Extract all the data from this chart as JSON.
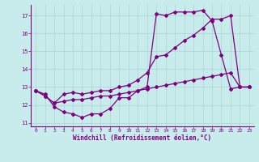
{
  "xlabel": "Windchill (Refroidissement éolien,°C)",
  "bg_color": "#c8ecec",
  "line_color": "#800080",
  "grid_color": "#b0d8d8",
  "xlim": [
    -0.5,
    23.5
  ],
  "ylim": [
    10.8,
    17.6
  ],
  "yticks": [
    11,
    12,
    13,
    14,
    15,
    16,
    17
  ],
  "xticks": [
    0,
    1,
    2,
    3,
    4,
    5,
    6,
    7,
    8,
    9,
    10,
    11,
    12,
    13,
    14,
    15,
    16,
    17,
    18,
    19,
    20,
    21,
    22,
    23
  ],
  "line_a_x": [
    0,
    1,
    2,
    3,
    4,
    5,
    6,
    7,
    8,
    9,
    10,
    11,
    12,
    13,
    14,
    15,
    16,
    17,
    18,
    19,
    20,
    21,
    22,
    23
  ],
  "line_a_y": [
    12.8,
    12.6,
    11.9,
    11.6,
    11.5,
    11.3,
    11.5,
    11.5,
    11.8,
    12.4,
    12.4,
    12.8,
    13.0,
    17.1,
    17.0,
    17.2,
    17.2,
    17.2,
    17.3,
    16.7,
    14.8,
    12.9,
    13.0,
    13.0
  ],
  "line_b_x": [
    0,
    1,
    2,
    3,
    4,
    5,
    6,
    7,
    8,
    9,
    10,
    11,
    12,
    13,
    14,
    15,
    16,
    17,
    18,
    19,
    20,
    21,
    22,
    23
  ],
  "line_b_y": [
    12.8,
    12.5,
    12.1,
    12.6,
    12.7,
    12.6,
    12.7,
    12.8,
    12.8,
    13.0,
    13.1,
    13.4,
    13.8,
    14.7,
    14.8,
    15.2,
    15.6,
    15.9,
    16.3,
    16.8,
    16.8,
    17.0,
    13.0,
    13.0
  ],
  "line_c_x": [
    0,
    1,
    2,
    3,
    4,
    5,
    6,
    7,
    8,
    9,
    10,
    11,
    12,
    13,
    14,
    15,
    16,
    17,
    18,
    19,
    20,
    21,
    22,
    23
  ],
  "line_c_y": [
    12.8,
    12.5,
    12.1,
    12.2,
    12.3,
    12.3,
    12.4,
    12.5,
    12.5,
    12.6,
    12.7,
    12.8,
    12.9,
    13.0,
    13.1,
    13.2,
    13.3,
    13.4,
    13.5,
    13.6,
    13.7,
    13.8,
    13.0,
    13.0
  ]
}
